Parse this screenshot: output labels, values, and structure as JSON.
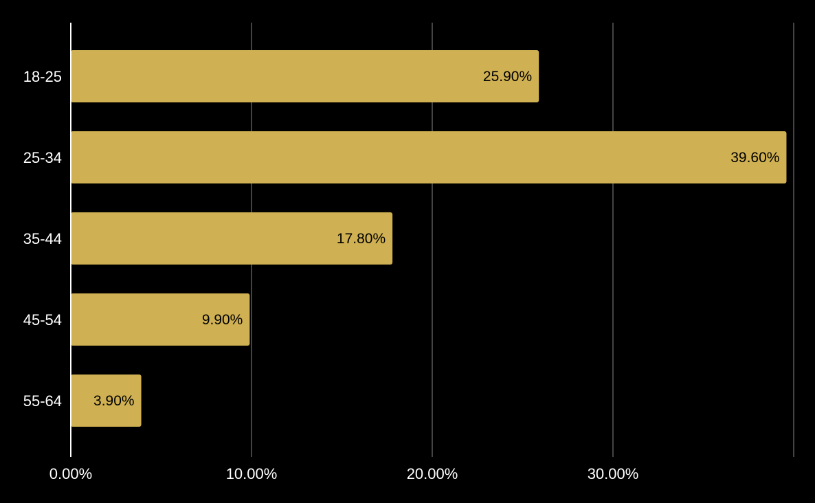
{
  "chart_data": {
    "type": "bar",
    "orientation": "horizontal",
    "categories": [
      "18-25",
      "25-34",
      "35-44",
      "45-54",
      "55-64"
    ],
    "values": [
      25.9,
      39.6,
      17.8,
      9.9,
      3.9
    ],
    "data_labels": [
      "25.90%",
      "39.60%",
      "17.80%",
      "9.90%",
      "3.90%"
    ],
    "x_ticks": [
      0,
      10,
      20,
      30,
      40
    ],
    "x_tick_labels": [
      "0.00%",
      "10.00%",
      "20.00%",
      "30.00%",
      ""
    ],
    "xlim": [
      0,
      40
    ],
    "grid": true,
    "legend": "none",
    "title": "",
    "xlabel": "",
    "ylabel": ""
  },
  "colors": {
    "background": "#000000",
    "bar": "#cfb052",
    "gridline": "#5a5a5a",
    "axis_line": "#ffffff",
    "text": "#ffffff",
    "data_label_text": "#000000"
  }
}
